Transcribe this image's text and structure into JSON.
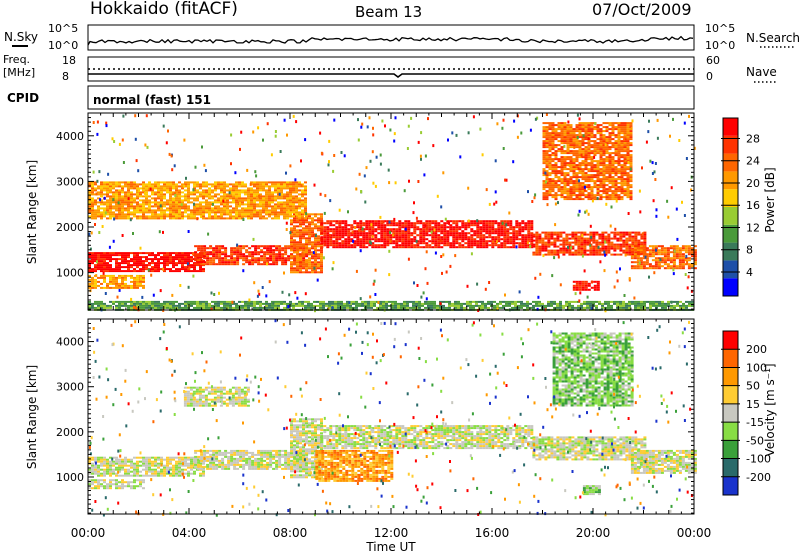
{
  "header": {
    "left": "Hokkaido (fitACF)",
    "center": "Beam 13",
    "right": "07/Oct/2009"
  },
  "top_strip": {
    "n_sky_label": "N.Sky",
    "n_search_label": "N.Search",
    "left_ticks": [
      "10^5",
      "10^0"
    ],
    "right_ticks": [
      "10^5",
      "10^0"
    ],
    "freq_label_1": "Freq.",
    "freq_label_2": "[MHz]",
    "freq_ticks": [
      "18",
      "8"
    ],
    "nave_label": "Nave",
    "nave_ticks": [
      "60",
      "0"
    ],
    "cpid_label": "CPID",
    "cpid_value": "normal (fast) 151"
  },
  "chart_data": [
    {
      "type": "heatmap",
      "ylabel": "Slant Range [km]",
      "xlabel": "Time UT",
      "x_ticks": [
        "00:00",
        "04:00",
        "08:00",
        "12:00",
        "16:00",
        "20:00",
        "00:00"
      ],
      "y_ticks": [
        "1000",
        "2000",
        "3000",
        "4000"
      ],
      "x_range_hours": [
        0,
        24
      ],
      "y_range_km": [
        180,
        4500
      ],
      "colorbar": {
        "label": "Power [dB]",
        "ticks": [
          "4",
          "8",
          "12",
          "16",
          "20",
          "24",
          "28"
        ],
        "colors": [
          "#0000ff",
          "#1e4fa8",
          "#3a7a5a",
          "#4a9a3a",
          "#99cc33",
          "#ffcc00",
          "#ff9900",
          "#ff6600",
          "#ff3300",
          "#ff0000"
        ]
      },
      "echo_bands": [
        {
          "t0": 0.0,
          "t1": 4.6,
          "r0": 1050,
          "r1": 1450,
          "level": 9
        },
        {
          "t0": 0.0,
          "t1": 2.2,
          "r0": 650,
          "r1": 950,
          "level": 6
        },
        {
          "t0": 4.2,
          "t1": 8.6,
          "r0": 1200,
          "r1": 1600,
          "level": 8
        },
        {
          "t0": 8.0,
          "t1": 9.2,
          "r0": 1000,
          "r1": 2300,
          "level": 7
        },
        {
          "t0": 9.2,
          "t1": 17.6,
          "r0": 1550,
          "r1": 2150,
          "level": 9
        },
        {
          "t0": 17.6,
          "t1": 22.0,
          "r0": 1400,
          "r1": 1900,
          "level": 8
        },
        {
          "t0": 21.5,
          "t1": 24.0,
          "r0": 1100,
          "r1": 1600,
          "level": 7
        },
        {
          "t0": 0.0,
          "t1": 8.6,
          "r0": 2200,
          "r1": 3000,
          "level": 6
        },
        {
          "t0": 18.0,
          "t1": 21.5,
          "r0": 2600,
          "r1": 4300,
          "level": 7
        },
        {
          "t0": 19.2,
          "t1": 20.2,
          "r0": 620,
          "r1": 820,
          "level": 9
        },
        {
          "t0": 0.0,
          "t1": 24.0,
          "r0": 180,
          "r1": 380,
          "level": 3
        }
      ]
    },
    {
      "type": "heatmap",
      "ylabel": "Slant Range [km]",
      "xlabel": "Time UT",
      "x_ticks": [
        "00:00",
        "04:00",
        "08:00",
        "12:00",
        "16:00",
        "20:00",
        "00:00"
      ],
      "y_ticks": [
        "1000",
        "2000",
        "3000",
        "4000"
      ],
      "x_range_hours": [
        0,
        24
      ],
      "y_range_km": [
        180,
        4500
      ],
      "colorbar": {
        "label": "Velocity [m s⁻¹]",
        "ticks": [
          "200",
          "100",
          "50",
          "15",
          "-15",
          "-50",
          "-100",
          "-200"
        ],
        "colors": [
          "#1a33cc",
          "#2a6a6a",
          "#3aa03a",
          "#88dd44",
          "#c8c8c0",
          "#ffcc33",
          "#ff9900",
          "#ff6600",
          "#ff0000"
        ]
      },
      "echo_bands": [
        {
          "t0": 0.0,
          "t1": 4.6,
          "r0": 1050,
          "r1": 1450,
          "level": 4
        },
        {
          "t0": 0.0,
          "t1": 2.2,
          "r0": 750,
          "r1": 950,
          "level": 4
        },
        {
          "t0": 4.2,
          "t1": 8.6,
          "r0": 1200,
          "r1": 1600,
          "level": 4
        },
        {
          "t0": 8.0,
          "t1": 9.2,
          "r0": 1000,
          "r1": 2300,
          "level": 4
        },
        {
          "t0": 9.2,
          "t1": 17.6,
          "r0": 1650,
          "r1": 2150,
          "level": 4
        },
        {
          "t0": 17.6,
          "t1": 22.0,
          "r0": 1400,
          "r1": 1900,
          "level": 4
        },
        {
          "t0": 21.5,
          "t1": 24.0,
          "r0": 1100,
          "r1": 1600,
          "level": 4
        },
        {
          "t0": 3.8,
          "t1": 6.4,
          "r0": 2600,
          "r1": 3000,
          "level": 4
        },
        {
          "t0": 18.4,
          "t1": 21.5,
          "r0": 2600,
          "r1": 4200,
          "level": 3
        },
        {
          "t0": 19.6,
          "t1": 20.2,
          "r0": 620,
          "r1": 820,
          "level": 3
        },
        {
          "t0": 9.0,
          "t1": 12.0,
          "r0": 900,
          "r1": 1600,
          "level": 6
        }
      ]
    }
  ]
}
